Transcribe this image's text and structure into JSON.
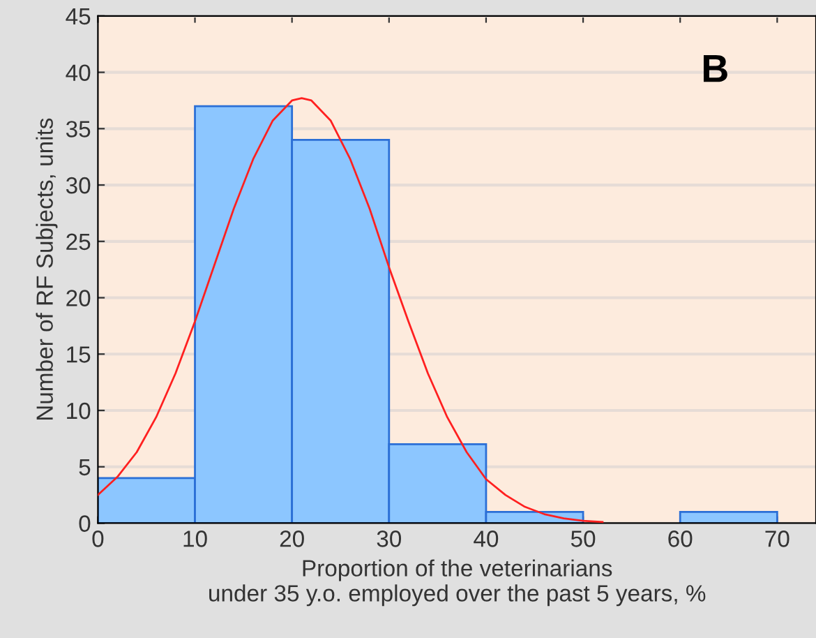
{
  "chart_data": {
    "type": "histogram",
    "xlabel": "Proportion of the veterinarians\nunder 35 y.o. employed over the past 5 years, %",
    "ylabel": "Number of RF Subjects, units",
    "annotations": [
      "B"
    ],
    "bins": [
      0,
      10,
      20,
      30,
      40,
      50,
      60,
      70
    ],
    "values": [
      4,
      37,
      34,
      7,
      1,
      0,
      1
    ],
    "color": "#8cc6ff",
    "series": [
      {
        "type": "line",
        "color": "#ff2020",
        "x": [
          0,
          2,
          4,
          6,
          8,
          10,
          12,
          14,
          16,
          18,
          20,
          21,
          22,
          24,
          26,
          28,
          30,
          32,
          34,
          36,
          38,
          40,
          42,
          44,
          46,
          48,
          50,
          52
        ],
        "values": [
          2.5,
          4.1,
          6.3,
          9.4,
          13.3,
          17.9,
          22.9,
          27.9,
          32.3,
          35.7,
          37.5,
          37.7,
          37.5,
          35.7,
          32.3,
          27.9,
          22.7,
          17.9,
          13.3,
          9.4,
          6.3,
          3.9,
          2.5,
          1.45,
          0.8,
          0.42,
          0.21,
          0.1
        ]
      }
    ],
    "xlim": [
      0,
      74
    ],
    "xticks": [
      0,
      10,
      20,
      30,
      40,
      50,
      60,
      70
    ],
    "ylim": [
      0,
      45
    ],
    "yticks": [
      0,
      5,
      10,
      15,
      20,
      25,
      30,
      35,
      40,
      45
    ],
    "grid": "y",
    "legend": false
  }
}
